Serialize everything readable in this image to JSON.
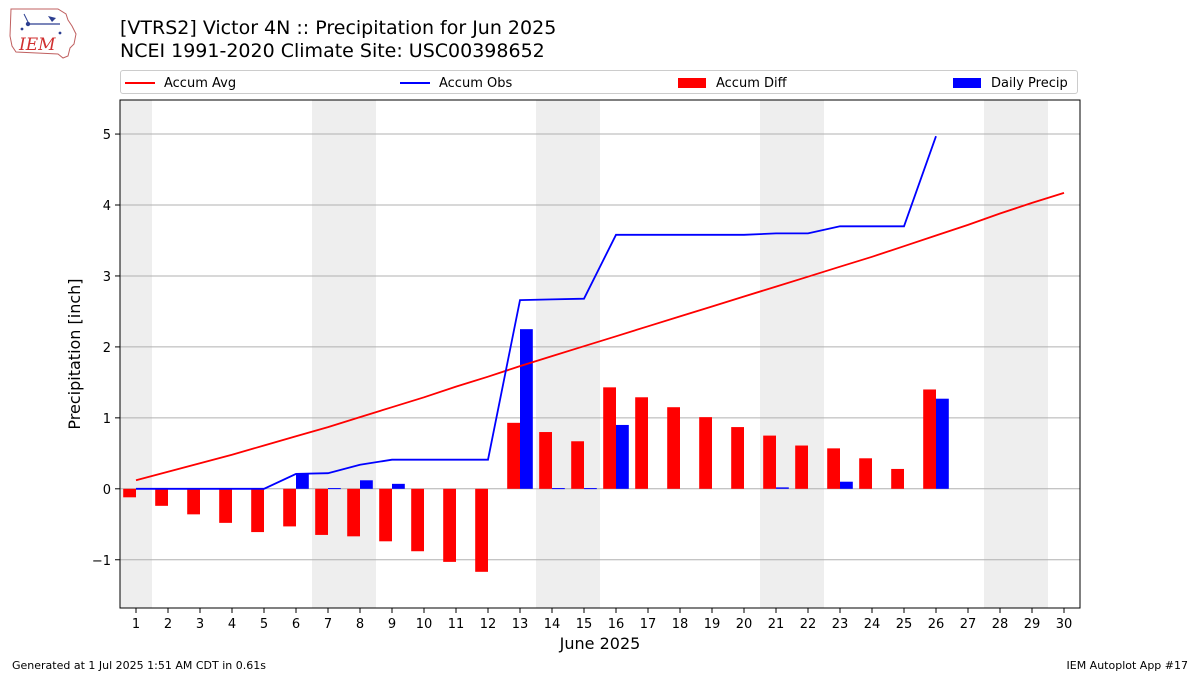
{
  "header": {
    "logo_text": "IEM",
    "title": "[VTRS2] Victor 4N :: Precipitation for Jun 2025",
    "subtitle": "NCEI 1991-2020 Climate Site: USC00398652"
  },
  "legend": {
    "items": [
      {
        "label": "Accum Avg",
        "kind": "line",
        "color": "#ff0000"
      },
      {
        "label": "Accum Obs",
        "kind": "line",
        "color": "#0000ff"
      },
      {
        "label": "Accum Diff",
        "kind": "bar",
        "color": "#ff0000"
      },
      {
        "label": "Daily Precip",
        "kind": "bar",
        "color": "#0000ff"
      }
    ],
    "placement": "top"
  },
  "footer": {
    "left": "Generated at 1 Jul 2025 1:51 AM CDT in 0.61s",
    "right": "IEM Autoplot App #17"
  },
  "chart_data": {
    "type": "bar",
    "xlabel": "June 2025",
    "ylabel": "Precipitation [inch]",
    "ylim": [
      -1.68,
      5.48
    ],
    "yticks": [
      -1,
      0,
      1,
      2,
      3,
      4,
      5
    ],
    "ytick_labels": [
      "−1",
      "0",
      "1",
      "2",
      "3",
      "4",
      "5"
    ],
    "grid": true,
    "weekend_days_shaded": [
      1,
      7,
      8,
      14,
      15,
      21,
      22,
      28,
      29
    ],
    "categories": [
      "1",
      "2",
      "3",
      "4",
      "5",
      "6",
      "7",
      "8",
      "9",
      "10",
      "11",
      "12",
      "13",
      "14",
      "15",
      "16",
      "17",
      "18",
      "19",
      "20",
      "21",
      "22",
      "23",
      "24",
      "25",
      "26",
      "27",
      "28",
      "29",
      "30"
    ],
    "series": [
      {
        "name": "Accum Avg",
        "type": "line",
        "color": "#ff0000",
        "x": [
          1,
          2,
          3,
          4,
          5,
          6,
          7,
          8,
          9,
          10,
          11,
          12,
          13,
          14,
          15,
          16,
          17,
          18,
          19,
          20,
          21,
          22,
          23,
          24,
          25,
          26,
          27,
          28,
          29,
          30
        ],
        "values": [
          0.12,
          0.24,
          0.36,
          0.48,
          0.61,
          0.74,
          0.87,
          1.01,
          1.15,
          1.29,
          1.44,
          1.58,
          1.73,
          1.87,
          2.01,
          2.15,
          2.29,
          2.43,
          2.57,
          2.71,
          2.85,
          2.99,
          3.13,
          3.27,
          3.42,
          3.57,
          3.72,
          3.88,
          4.03,
          4.17
        ]
      },
      {
        "name": "Accum Obs",
        "type": "line",
        "color": "#0000ff",
        "x": [
          1,
          2,
          3,
          4,
          5,
          6,
          7,
          8,
          9,
          10,
          11,
          12,
          13,
          14,
          15,
          16,
          17,
          18,
          19,
          20,
          21,
          22,
          23,
          24,
          25,
          26
        ],
        "values": [
          0,
          0,
          0,
          0,
          0,
          0.21,
          0.22,
          0.34,
          0.41,
          0.41,
          0.41,
          0.41,
          2.66,
          2.67,
          2.68,
          3.58,
          3.58,
          3.58,
          3.58,
          3.58,
          3.6,
          3.6,
          3.7,
          3.7,
          3.7,
          4.97
        ]
      },
      {
        "name": "Accum Diff",
        "type": "bar",
        "color": "#ff0000",
        "x": [
          1,
          2,
          3,
          4,
          5,
          6,
          7,
          8,
          9,
          10,
          11,
          12,
          13,
          14,
          15,
          16,
          17,
          18,
          19,
          20,
          21,
          22,
          23,
          24,
          25,
          26
        ],
        "values": [
          -0.12,
          -0.24,
          -0.36,
          -0.48,
          -0.61,
          -0.53,
          -0.65,
          -0.67,
          -0.74,
          -0.88,
          -1.03,
          -1.17,
          0.93,
          0.8,
          0.67,
          1.43,
          1.29,
          1.15,
          1.01,
          0.87,
          0.75,
          0.61,
          0.57,
          0.43,
          0.28,
          1.4
        ]
      },
      {
        "name": "Daily Precip",
        "type": "bar",
        "color": "#0000ff",
        "x": [
          1,
          2,
          3,
          4,
          5,
          6,
          7,
          8,
          9,
          10,
          11,
          12,
          13,
          14,
          15,
          16,
          17,
          18,
          19,
          20,
          21,
          22,
          23,
          24,
          25,
          26
        ],
        "values": [
          0,
          0,
          0,
          0,
          0,
          0.21,
          0.01,
          0.12,
          0.07,
          0,
          0,
          0,
          2.25,
          0.01,
          0.01,
          0.9,
          0,
          0,
          0,
          0,
          0.02,
          0,
          0.1,
          0,
          0,
          1.27
        ]
      }
    ]
  }
}
